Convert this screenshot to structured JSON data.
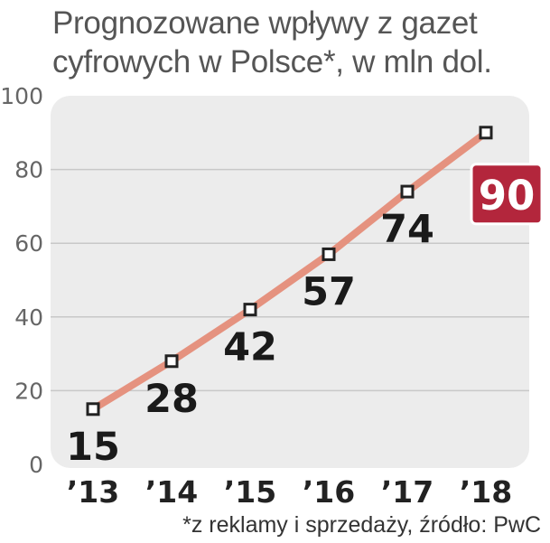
{
  "title_lines": [
    "Prognozowane wpływy z gazet",
    "cyfrowych w Polsce*, w mln dol."
  ],
  "footnote": "*z reklamy i sprzedaży, źródło: PwC",
  "colors": {
    "plot_bg": "#ececec",
    "line": "#e5927f",
    "highlight": "#b3263c",
    "grid": "#c8c8c8"
  },
  "chart_data": {
    "type": "line",
    "categories": [
      "’13",
      "’14",
      "’15",
      "’16",
      "’17",
      "’18"
    ],
    "values": [
      15,
      28,
      42,
      57,
      74,
      90
    ],
    "data_labels": [
      "15",
      "28",
      "42",
      "57",
      "74",
      "90"
    ],
    "highlight_index": 5,
    "ylim": [
      0,
      100
    ],
    "yticks": [
      0,
      20,
      40,
      60,
      80,
      100
    ],
    "grid": true,
    "legend": false
  }
}
